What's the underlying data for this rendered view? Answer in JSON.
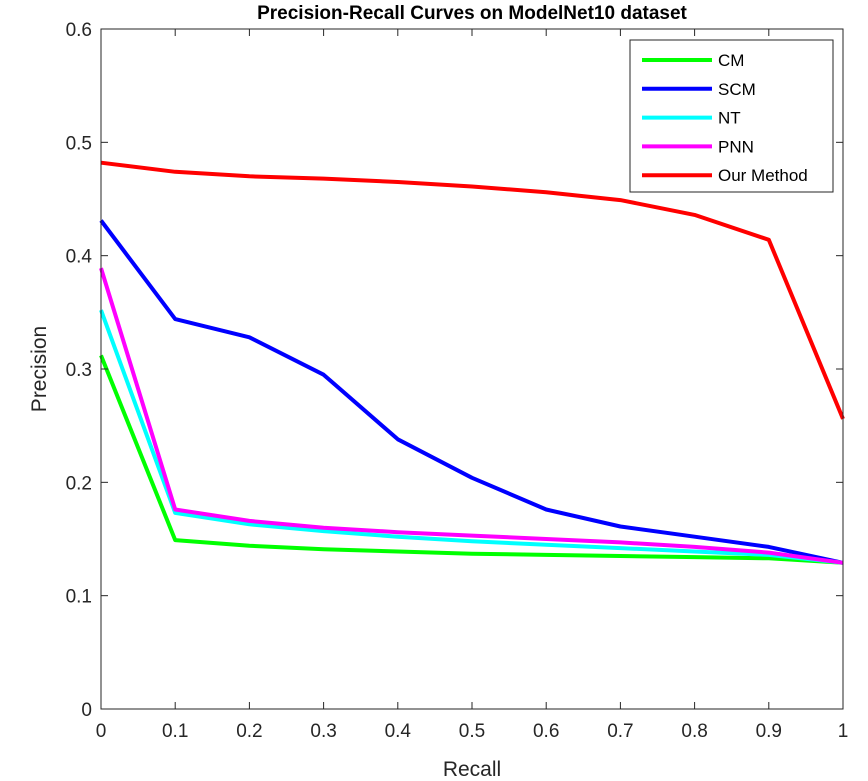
{
  "chart_data": {
    "type": "line",
    "title": "Precision-Recall Curves on ModelNet10 dataset",
    "xlabel": "Recall",
    "ylabel": "Precision",
    "xlim": [
      0,
      1
    ],
    "ylim": [
      0,
      0.6
    ],
    "x": [
      0,
      0.1,
      0.2,
      0.3,
      0.4,
      0.5,
      0.6,
      0.7,
      0.8,
      0.9,
      1
    ],
    "xticks": [
      0,
      0.1,
      0.2,
      0.3,
      0.4,
      0.5,
      0.6,
      0.7,
      0.8,
      0.9,
      1
    ],
    "xtick_labels": [
      "0",
      "0.1",
      "0.2",
      "0.3",
      "0.4",
      "0.5",
      "0.6",
      "0.7",
      "0.8",
      "0.9",
      "1"
    ],
    "yticks": [
      0,
      0.1,
      0.2,
      0.3,
      0.4,
      0.5,
      0.6
    ],
    "ytick_labels": [
      "0",
      "0.1",
      "0.2",
      "0.3",
      "0.4",
      "0.5",
      "0.6"
    ],
    "grid": false,
    "legend_position": "top-right",
    "series": [
      {
        "name": "CM",
        "color": "#00ff00",
        "values": [
          0.312,
          0.149,
          0.144,
          0.141,
          0.139,
          0.137,
          0.136,
          0.135,
          0.134,
          0.133,
          0.129
        ]
      },
      {
        "name": "SCM",
        "color": "#0000ff",
        "values": [
          0.431,
          0.344,
          0.328,
          0.295,
          0.238,
          0.204,
          0.176,
          0.161,
          0.152,
          0.143,
          0.129
        ]
      },
      {
        "name": "NT",
        "color": "#00ffff",
        "values": [
          0.352,
          0.173,
          0.163,
          0.157,
          0.152,
          0.148,
          0.145,
          0.142,
          0.139,
          0.136,
          0.129
        ]
      },
      {
        "name": "PNN",
        "color": "#ff00ff",
        "values": [
          0.389,
          0.176,
          0.166,
          0.16,
          0.156,
          0.153,
          0.15,
          0.147,
          0.143,
          0.138,
          0.129
        ]
      },
      {
        "name": "Our Method",
        "color": "#ff0000",
        "values": [
          0.482,
          0.474,
          0.47,
          0.468,
          0.465,
          0.461,
          0.456,
          0.449,
          0.436,
          0.414,
          0.256
        ]
      }
    ]
  }
}
